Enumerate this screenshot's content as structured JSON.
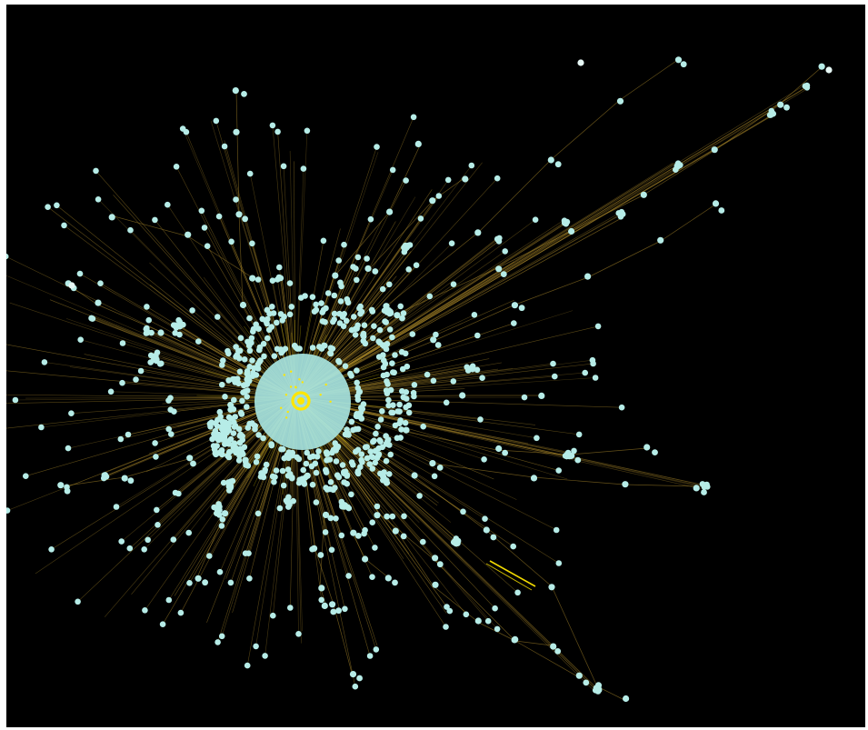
{
  "colors": {
    "background": "#000000",
    "frame": "#ffffff",
    "node": "#b6ece7",
    "node_highlight": "#e6f7f5",
    "edge": "#a7862a",
    "edge_bright": "#ffe600",
    "core_fill": "#a7e4df"
  },
  "network": {
    "layout": "radial-force",
    "labels_visible": false,
    "hub_marker": "ring"
  }
}
